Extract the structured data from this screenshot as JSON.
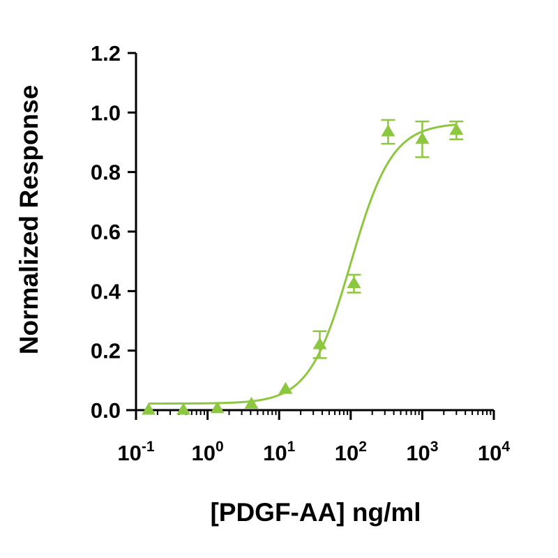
{
  "chart_data": {
    "type": "scatter",
    "xlabel": "[PDGF-AA] ng/ml",
    "ylabel": "Normalized Response",
    "x_scale": "log10",
    "xlim": [
      0.1,
      10000
    ],
    "ylim": [
      0,
      1.2
    ],
    "x_ticks": [
      {
        "value": 0.1,
        "base": "10",
        "exp": "-1"
      },
      {
        "value": 1,
        "base": "10",
        "exp": "0"
      },
      {
        "value": 10,
        "base": "10",
        "exp": "1"
      },
      {
        "value": 100,
        "base": "10",
        "exp": "2"
      },
      {
        "value": 1000,
        "base": "10",
        "exp": "3"
      },
      {
        "value": 10000,
        "base": "10",
        "exp": "4"
      }
    ],
    "y_ticks": [
      {
        "value": 0.0,
        "label": "0.0"
      },
      {
        "value": 0.2,
        "label": "0.2"
      },
      {
        "value": 0.4,
        "label": "0.4"
      },
      {
        "value": 0.6,
        "label": "0.6"
      },
      {
        "value": 0.8,
        "label": "0.8"
      },
      {
        "value": 1.0,
        "label": "1.0"
      },
      {
        "value": 1.2,
        "label": "1.2"
      }
    ],
    "grid": false,
    "color": "#8dc63f",
    "marker": "triangle",
    "series": [
      {
        "x": [
          0.15,
          0.46,
          1.37,
          4.1,
          12.3,
          37,
          111,
          333,
          1000,
          3000
        ],
        "y": [
          0.0,
          0.0,
          0.005,
          0.02,
          0.07,
          0.22,
          0.425,
          0.935,
          0.91,
          0.94
        ],
        "error": [
          0,
          0,
          0,
          0,
          0,
          0.045,
          0.03,
          0.04,
          0.06,
          0.03
        ]
      }
    ],
    "fit_curve": {
      "model": "four-parameter logistic",
      "bottom": 0.022,
      "top": 0.965,
      "ec50": 100,
      "hill": 1.5
    }
  }
}
